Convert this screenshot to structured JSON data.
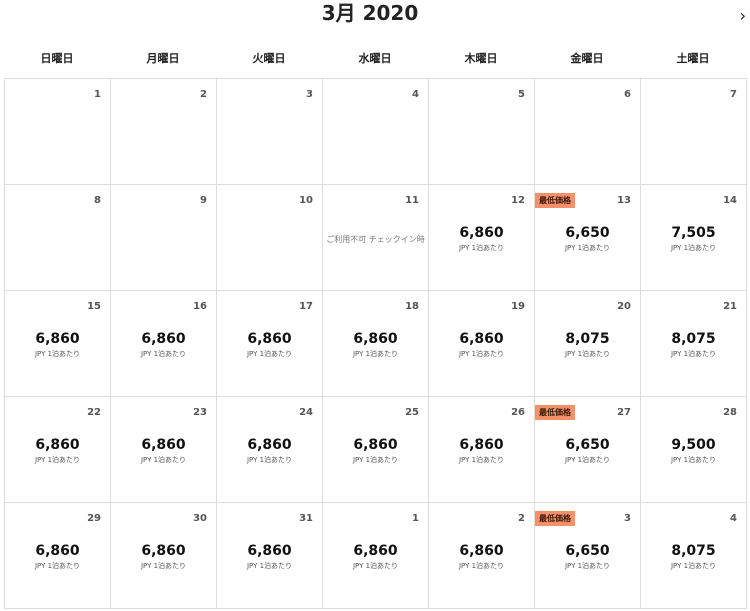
{
  "header": {
    "title": "3月 2020",
    "next_icon": "chevron-right-icon"
  },
  "weekdays": [
    "日曜日",
    "月曜日",
    "火曜日",
    "水曜日",
    "木曜日",
    "金曜日",
    "土曜日"
  ],
  "unit_label": "JPY 1泊あたり",
  "badge_color": "#f4906a",
  "weeks": [
    [
      {
        "day": "1"
      },
      {
        "day": "2"
      },
      {
        "day": "3"
      },
      {
        "day": "4"
      },
      {
        "day": "5"
      },
      {
        "day": "6"
      },
      {
        "day": "7"
      }
    ],
    [
      {
        "day": "8"
      },
      {
        "day": "9"
      },
      {
        "day": "10"
      },
      {
        "day": "11",
        "note": "ご利用不可 チェックイン時"
      },
      {
        "day": "12",
        "price": "6,860"
      },
      {
        "day": "13",
        "price": "6,650",
        "badge": "最低価格"
      },
      {
        "day": "14",
        "price": "7,505"
      }
    ],
    [
      {
        "day": "15",
        "price": "6,860"
      },
      {
        "day": "16",
        "price": "6,860"
      },
      {
        "day": "17",
        "price": "6,860"
      },
      {
        "day": "18",
        "price": "6,860"
      },
      {
        "day": "19",
        "price": "6,860"
      },
      {
        "day": "20",
        "price": "8,075"
      },
      {
        "day": "21",
        "price": "8,075"
      }
    ],
    [
      {
        "day": "22",
        "price": "6,860"
      },
      {
        "day": "23",
        "price": "6,860"
      },
      {
        "day": "24",
        "price": "6,860"
      },
      {
        "day": "25",
        "price": "6,860"
      },
      {
        "day": "26",
        "price": "6,860"
      },
      {
        "day": "27",
        "price": "6,650",
        "badge": "最低価格"
      },
      {
        "day": "28",
        "price": "9,500"
      }
    ],
    [
      {
        "day": "29",
        "price": "6,860"
      },
      {
        "day": "30",
        "price": "6,860"
      },
      {
        "day": "31",
        "price": "6,860"
      },
      {
        "day": "1",
        "price": "6,860"
      },
      {
        "day": "2",
        "price": "6,860"
      },
      {
        "day": "3",
        "price": "6,650",
        "badge": "最低価格"
      },
      {
        "day": "4",
        "price": "8,075"
      }
    ]
  ]
}
